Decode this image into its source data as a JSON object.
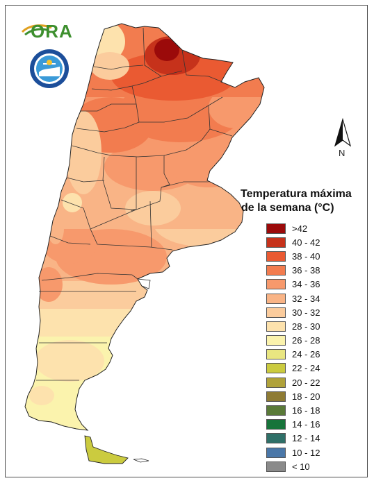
{
  "legend": {
    "title_line1": "Temperatura máxima",
    "title_line2": "de la semana (°C)",
    "items": [
      {
        "label": ">42",
        "color": "#9b0a0a"
      },
      {
        "label": "40 - 42",
        "color": "#c6321b"
      },
      {
        "label": "38 - 40",
        "color": "#ea5a32"
      },
      {
        "label": "36 - 38",
        "color": "#f27c4f"
      },
      {
        "label": "34 - 36",
        "color": "#f7996c"
      },
      {
        "label": "32 - 34",
        "color": "#f9b486"
      },
      {
        "label": "30 - 32",
        "color": "#fbcc9d"
      },
      {
        "label": "28 - 30",
        "color": "#fde2ad"
      },
      {
        "label": "26 - 28",
        "color": "#fbf3ad"
      },
      {
        "label": "24 - 26",
        "color": "#e9e681"
      },
      {
        "label": "22 - 24",
        "color": "#cbcb3f"
      },
      {
        "label": "20 - 22",
        "color": "#b0a23a"
      },
      {
        "label": "18 - 20",
        "color": "#8e7b34"
      },
      {
        "label": "16 - 18",
        "color": "#5a7a38"
      },
      {
        "label": "14 - 16",
        "color": "#17743a"
      },
      {
        "label": "12 - 14",
        "color": "#2f7068"
      },
      {
        "label": "10 - 12",
        "color": "#4a77a8"
      },
      {
        "label": "< 10",
        "color": "#8a8a8a"
      }
    ]
  },
  "north_arrow": {
    "label": "N"
  },
  "logo": {
    "text": "ORA"
  },
  "seal": {
    "text": "SERVICIO METEOROLÓGICO NACIONAL · ARGENTINA"
  }
}
